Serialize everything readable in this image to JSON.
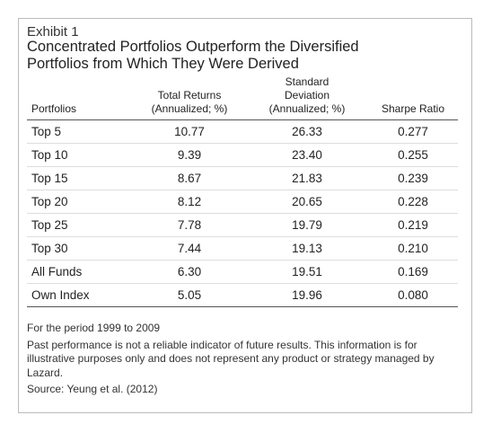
{
  "header": {
    "exhibit": "Exhibit 1",
    "title_lines": [
      "Concentrated Portfolios Outperform the Diversified",
      "Portfolios from Which They Were Derived"
    ]
  },
  "table": {
    "columns": [
      [
        "Portfolios"
      ],
      [
        "Total Returns",
        "(Annualized; %)"
      ],
      [
        "Standard Deviation",
        "(Annualized; %)"
      ],
      [
        "Sharpe Ratio"
      ]
    ],
    "rows": [
      [
        "Top 5",
        "10.77",
        "26.33",
        "0.277"
      ],
      [
        "Top 10",
        "9.39",
        "23.40",
        "0.255"
      ],
      [
        "Top 15",
        "8.67",
        "21.83",
        "0.239"
      ],
      [
        "Top 20",
        "8.12",
        "20.65",
        "0.228"
      ],
      [
        "Top 25",
        "7.78",
        "19.79",
        "0.219"
      ],
      [
        "Top 30",
        "7.44",
        "19.13",
        "0.210"
      ],
      [
        "All Funds",
        "6.30",
        "19.51",
        "0.169"
      ],
      [
        "Own Index",
        "5.05",
        "19.96",
        "0.080"
      ]
    ]
  },
  "notes": [
    "For the period 1999 to 2009",
    "Past performance is not a reliable indicator of future results. This information is for illustrative purposes only and does not represent any product or strategy managed by Lazard.",
    "Source: Yeung et al. (2012)"
  ]
}
